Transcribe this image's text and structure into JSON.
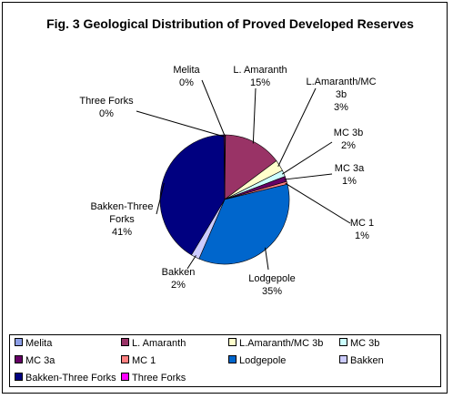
{
  "chart_data": {
    "type": "pie",
    "title": "Fig. 3 Geological Distribution of Proved Developed Reserves",
    "slices": [
      {
        "name": "Melita",
        "value": 0.2,
        "label": "0%",
        "color": "#8c9ee6"
      },
      {
        "name": "L. Amaranth",
        "value": 14.6,
        "label": "15%",
        "color": "#993366"
      },
      {
        "name": "L.Amaranth/MC 3b",
        "value": 2.8,
        "label": "3%",
        "color": "#ffffcc"
      },
      {
        "name": "MC 3b",
        "value": 1.6,
        "label": "2%",
        "color": "#ccffff"
      },
      {
        "name": "MC 3a",
        "value": 1.3,
        "label": "1%",
        "color": "#660066"
      },
      {
        "name": "MC 1",
        "value": 0.7,
        "label": "1%",
        "color": "#ff8080"
      },
      {
        "name": "Lodgepole",
        "value": 35.3,
        "label": "35%",
        "color": "#0066cc"
      },
      {
        "name": "Bakken",
        "value": 2.1,
        "label": "2%",
        "color": "#ccccff"
      },
      {
        "name": "Bakken-Three Forks",
        "value": 41.2,
        "label": "41%",
        "color": "#000080"
      },
      {
        "name": "Three Forks",
        "value": 0.2,
        "label": "0%",
        "color": "#ff00ff"
      }
    ],
    "legend_placement": "bottom"
  },
  "callout_labels": [
    {
      "lines": [
        "Melita",
        "0%"
      ]
    },
    {
      "lines": [
        "L. Amaranth",
        "15%"
      ]
    },
    {
      "lines": [
        "L.Amaranth/MC",
        "3b",
        "3%"
      ]
    },
    {
      "lines": [
        "MC 3b",
        "2%"
      ]
    },
    {
      "lines": [
        "MC 3a",
        "1%"
      ]
    },
    {
      "lines": [
        "MC 1",
        "1%"
      ]
    },
    {
      "lines": [
        "Lodgepole",
        "35%"
      ]
    },
    {
      "lines": [
        "Bakken",
        "2%"
      ]
    },
    {
      "lines": [
        "Bakken-Three",
        "Forks",
        "41%"
      ]
    },
    {
      "lines": [
        "Three Forks",
        "0%"
      ]
    }
  ],
  "legend": [
    {
      "label": "Melita",
      "color": "#8c9ee6"
    },
    {
      "label": "L. Amaranth",
      "color": "#993366"
    },
    {
      "label": "L.Amaranth/MC 3b",
      "color": "#ffffcc"
    },
    {
      "label": "MC 3b",
      "color": "#ccffff"
    },
    {
      "label": "MC 3a",
      "color": "#660066"
    },
    {
      "label": "MC 1",
      "color": "#ff8080"
    },
    {
      "label": "Lodgepole",
      "color": "#0066cc"
    },
    {
      "label": "Bakken",
      "color": "#ccccff"
    },
    {
      "label": "Bakken-Three Forks",
      "color": "#000080"
    },
    {
      "label": "Three Forks",
      "color": "#ff00ff"
    }
  ]
}
